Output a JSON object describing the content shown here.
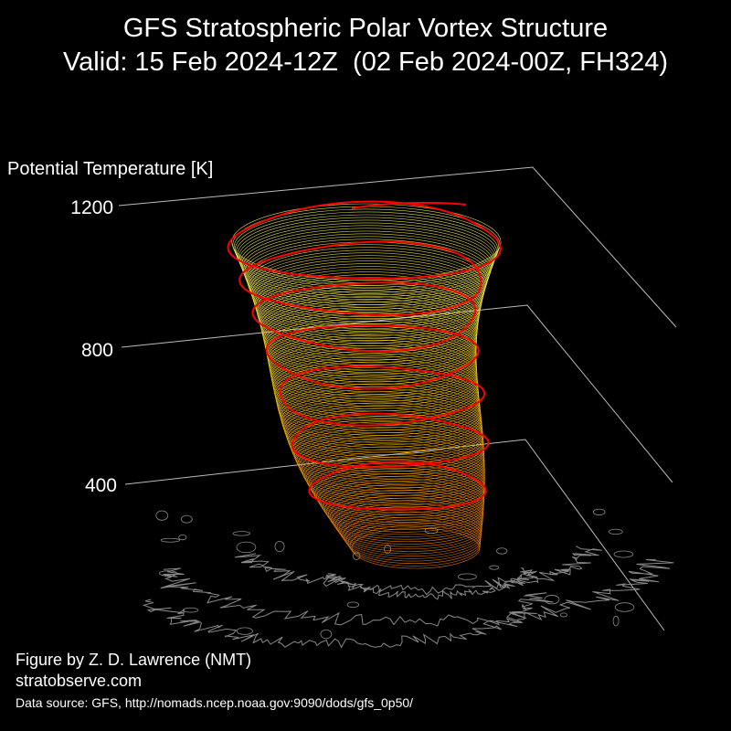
{
  "header": {
    "title_line1": "GFS Stratospheric Polar Vortex Structure",
    "title_line2": "Valid: 15 Feb 2024-12Z  (02 Feb 2024-00Z, FH324)"
  },
  "chart_data": {
    "type": "3d-isosurface",
    "zlabel": "Potential Temperature [K]",
    "z_ticks": [
      400,
      800,
      1200
    ],
    "zlim": [
      0,
      1200
    ],
    "colors": {
      "vortex_low": "#ff7f00",
      "vortex_mid": "#ffc800",
      "vortex_high": "#ffff66",
      "vortex_outline": "#ff0000",
      "coastlines": "#888888",
      "axis_lines": "#bbbbbb"
    }
  },
  "footer": {
    "credit_line1": "Figure by Z. D. Lawrence (NMT)",
    "credit_line2": "stratobserve.com",
    "source": "Data source: GFS, http://nomads.ncep.noaa.gov:9090/dods/gfs_0p50/"
  }
}
